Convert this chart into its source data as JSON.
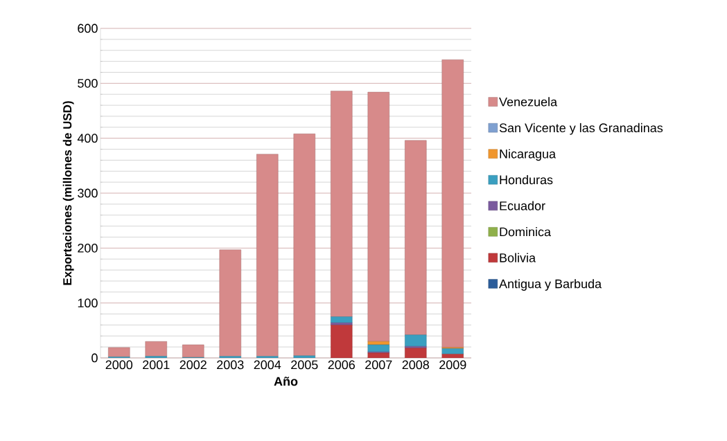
{
  "chart_data": {
    "type": "bar",
    "stacked": true,
    "xlabel": "Año",
    "ylabel": "Exportaciones (millones de USD)",
    "categories": [
      "2000",
      "2001",
      "2002",
      "2003",
      "2004",
      "2005",
      "2006",
      "2007",
      "2008",
      "2009"
    ],
    "series": [
      {
        "name": "Antigua y Barbuda",
        "color": "#2c5d9a",
        "values": [
          0,
          0,
          0,
          0,
          0,
          0,
          0,
          0,
          0,
          0
        ]
      },
      {
        "name": "Bolivia",
        "color": "#c0393b",
        "values": [
          0,
          0,
          0,
          0,
          0,
          0,
          60,
          9,
          18,
          7
        ]
      },
      {
        "name": "Dominica",
        "color": "#8fb04a",
        "values": [
          0,
          0,
          0,
          0,
          0,
          0,
          0,
          0,
          0,
          0
        ]
      },
      {
        "name": "Ecuador",
        "color": "#7a5a9e",
        "values": [
          0,
          0,
          0,
          0,
          0,
          0,
          4,
          2,
          3,
          0
        ]
      },
      {
        "name": "Honduras",
        "color": "#3a9fc0",
        "values": [
          2,
          3,
          1,
          3,
          3,
          4,
          11,
          13,
          21,
          10
        ]
      },
      {
        "name": "Nicaragua",
        "color": "#f0962e",
        "values": [
          0,
          0,
          0,
          0,
          0,
          0,
          0,
          6,
          0,
          2
        ]
      },
      {
        "name": "San Vicente y las Granadinas",
        "color": "#7fa0d0",
        "values": [
          0,
          0,
          0,
          0,
          0,
          0,
          0,
          0,
          0,
          0
        ]
      },
      {
        "name": "Venezuela",
        "color": "#d78a8a",
        "values": [
          17,
          27,
          23,
          194,
          368,
          404,
          411,
          454,
          354,
          524
        ]
      }
    ],
    "ylim": [
      0,
      600
    ],
    "yticks": [
      0,
      100,
      200,
      300,
      400,
      500,
      600
    ],
    "grid": "y",
    "legend": "right"
  }
}
